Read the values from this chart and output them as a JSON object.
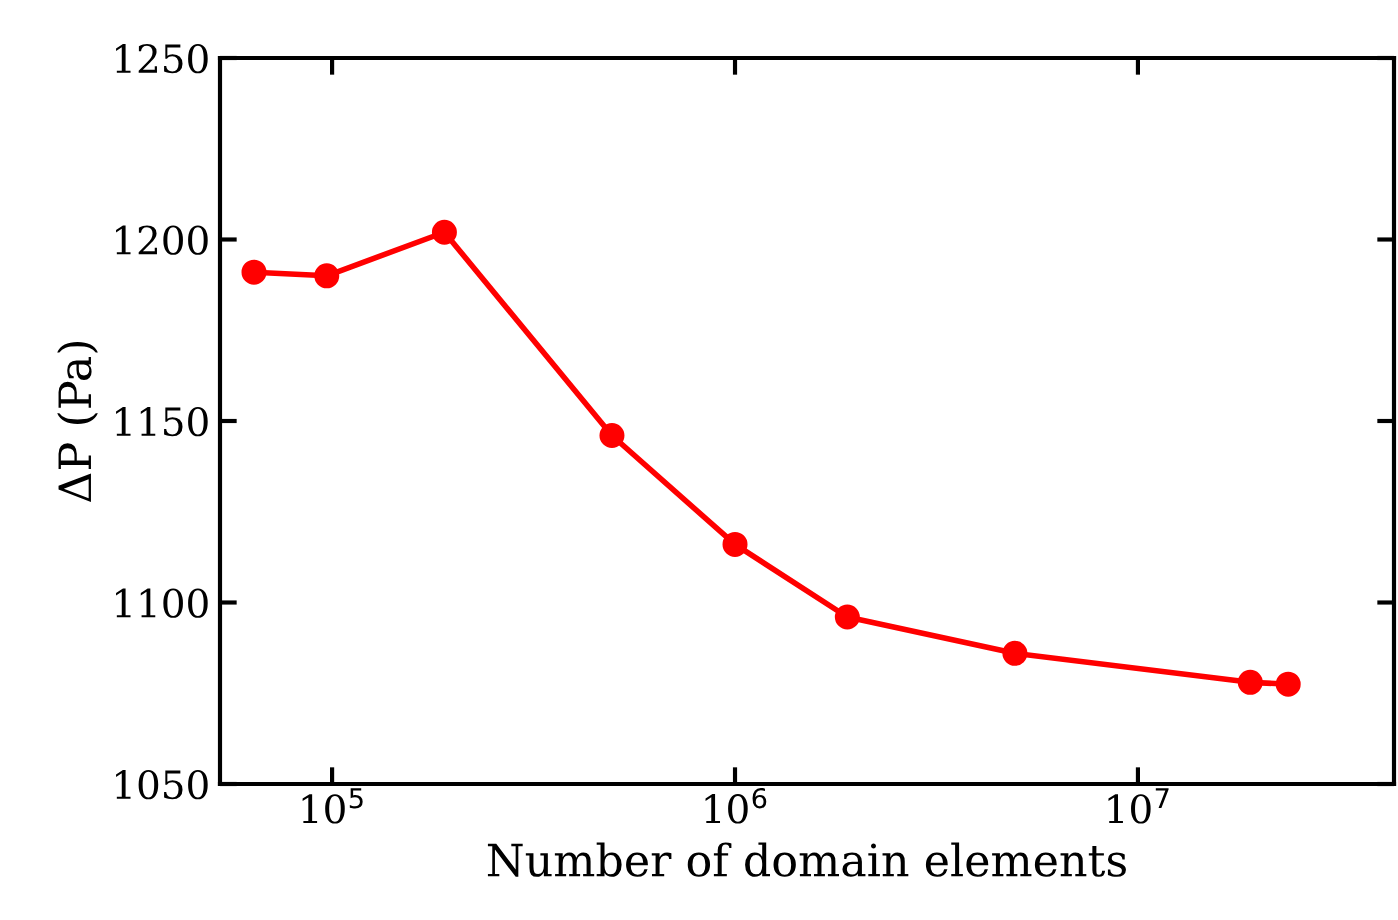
{
  "chart_data": {
    "type": "line",
    "xlabel": "Number of domain elements",
    "ylabel": "ΔP (Pa)",
    "x": [
      64000,
      97000,
      190000,
      495000,
      1000000,
      1900000,
      4950000,
      19000000,
      23600000
    ],
    "series": [
      {
        "color": "#ff0000",
        "values": [
          1191,
          1190,
          1202,
          1146,
          1116,
          1096,
          1086,
          1078,
          1077.5
        ]
      }
    ],
    "log": "x",
    "marker": "circle",
    "line_style": "solid",
    "xlim": [
      52700,
      43200000
    ],
    "xticks": [
      {
        "value": 100000,
        "label": "10$^{5}$"
      },
      {
        "value": 1000000,
        "label": "10$^{6}$"
      },
      {
        "value": 10000000,
        "label": "10$^{7}$"
      }
    ],
    "ylim": [
      1050,
      1250
    ],
    "yticks": [
      1050,
      1100,
      1150,
      1200,
      1250
    ]
  }
}
